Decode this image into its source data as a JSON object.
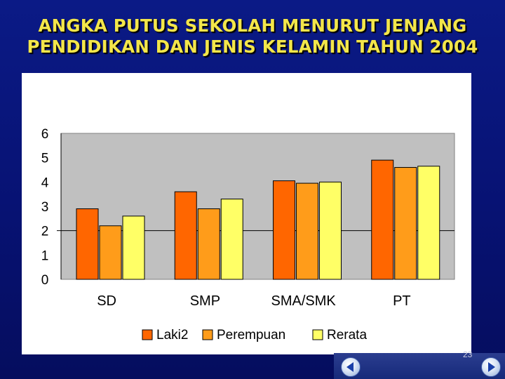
{
  "slide": {
    "title_line1": "ANGKA PUTUS SEKOLAH MENURUT JENJANG",
    "title_line2": "PENDIDIKAN DAN JENIS KELAMIN TAHUN 2004",
    "slide_number": "23"
  },
  "colors": {
    "laki2": "#ff6600",
    "perempuan": "#ff9c1a",
    "rerata": "#ffff66",
    "plot_area": "#c0c0c0"
  },
  "icons": [
    "prev-arrow-icon",
    "next-arrow-icon"
  ],
  "chart_data": {
    "type": "bar",
    "title": "",
    "xlabel": "",
    "ylabel": "",
    "categories": [
      "SD",
      "SMP",
      "SMA/SMK",
      "PT"
    ],
    "y_ticks": [
      "0",
      "1",
      "2",
      "3",
      "4",
      "5",
      "6"
    ],
    "ylim": [
      0,
      6
    ],
    "grid": "single horizontal gridline at 2",
    "legend_position": "bottom",
    "series": [
      {
        "name": "Laki2",
        "values": [
          2.9,
          3.6,
          4.05,
          4.9
        ]
      },
      {
        "name": "Perempuan",
        "values": [
          2.2,
          2.9,
          3.95,
          4.6
        ]
      },
      {
        "name": "Rerata",
        "values": [
          2.6,
          3.3,
          4.0,
          4.65
        ]
      }
    ]
  }
}
